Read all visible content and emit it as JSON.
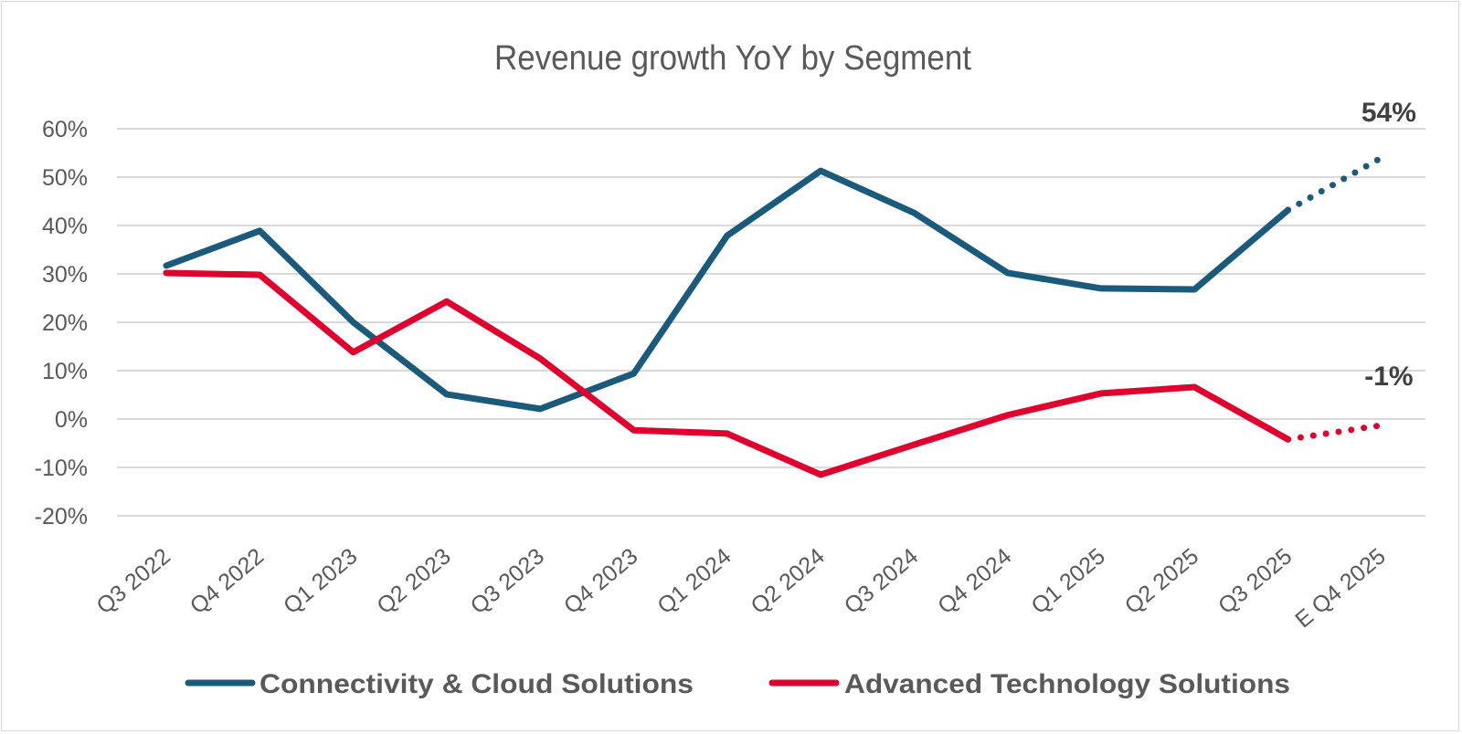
{
  "chart_data": {
    "type": "line",
    "title": "Revenue growth YoY by Segment",
    "xlabel": "",
    "ylabel": "",
    "categories": [
      "Q3 2022",
      "Q4 2022",
      "Q1 2023",
      "Q2 2023",
      "Q3 2023",
      "Q4 2023",
      "Q1 2024",
      "Q2 2024",
      "Q3 2024",
      "Q4 2024",
      "Q1 2025",
      "Q2 2025",
      "Q3 2025",
      "E Q4 2025"
    ],
    "yticks": [
      "60%",
      "50%",
      "40%",
      "30%",
      "20%",
      "10%",
      "0%",
      "-10%",
      "-20%"
    ],
    "ytick_values": [
      60,
      50,
      40,
      30,
      20,
      10,
      0,
      -10,
      -20
    ],
    "ylim": [
      -20,
      60
    ],
    "grid": true,
    "legend_position": "bottom",
    "series": [
      {
        "name": "Connectivity & Cloud Solutions",
        "color": "#1a5a7a",
        "values": [
          31.7,
          38.9,
          20.0,
          5.1,
          2.1,
          9.4,
          37.9,
          51.3,
          42.6,
          30.2,
          27.0,
          26.8,
          43.2,
          54.0
        ],
        "estimate_from_index": 12,
        "end_label": "54%"
      },
      {
        "name": "Advanced Technology Solutions",
        "color": "#e0002e",
        "values": [
          30.2,
          29.8,
          13.8,
          24.3,
          12.5,
          -2.3,
          -3.0,
          -11.5,
          -5.3,
          0.8,
          5.3,
          6.6,
          -4.2,
          -1.3
        ],
        "estimate_from_index": 12,
        "end_label": "-1%"
      }
    ]
  }
}
